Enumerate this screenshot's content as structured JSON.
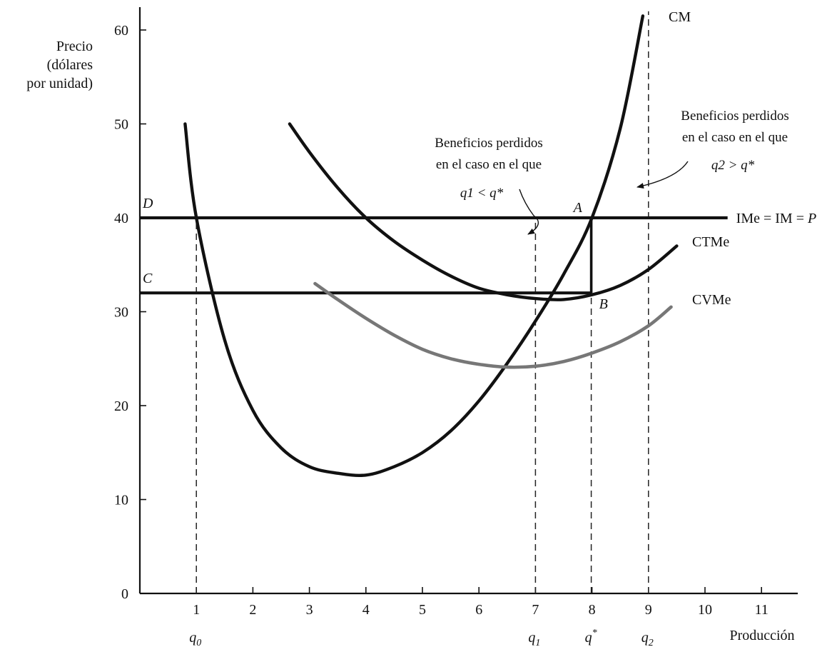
{
  "chart_data": {
    "type": "line",
    "ylabel": [
      "Precio",
      "(dólares",
      "por unidad)"
    ],
    "xlabel": "Producción",
    "xlim": [
      0,
      11.6
    ],
    "ylim": [
      0,
      63
    ],
    "xticks": [
      1,
      2,
      3,
      4,
      5,
      6,
      7,
      8,
      9,
      10,
      11
    ],
    "yticks": [
      0,
      10,
      20,
      30,
      40,
      50,
      60
    ],
    "quantity_labels": [
      {
        "x": 1,
        "label": "q0"
      },
      {
        "x": 7,
        "label": "q1"
      },
      {
        "x": 8,
        "label": "q*"
      },
      {
        "x": 9,
        "label": "q2"
      }
    ],
    "horizontal_lines": [
      {
        "name": "IMe = IM = P",
        "left_label": "D",
        "y": 40,
        "x_end": 10.4
      },
      {
        "left_label": "C",
        "y": 32,
        "x_end": 8
      }
    ],
    "series": [
      {
        "name": "CM",
        "color": "#111111",
        "x": [
          0.8,
          1.0,
          1.5,
          2.0,
          2.5,
          3.0,
          3.5,
          4.0,
          4.5,
          5.0,
          5.5,
          6.0,
          6.5,
          7.0,
          7.5,
          8.0,
          8.5,
          8.9
        ],
        "y": [
          50,
          40,
          27,
          19.5,
          15.5,
          13.5,
          12.8,
          12.6,
          13.5,
          15,
          17.3,
          20.5,
          24.5,
          29,
          34,
          40,
          49.5,
          61.5
        ]
      },
      {
        "name": "CTMe",
        "color": "#111111",
        "x": [
          2.65,
          3.0,
          3.5,
          4.0,
          4.5,
          5.0,
          5.5,
          6.0,
          6.5,
          7.0,
          7.5,
          8.0,
          8.5,
          9.0,
          9.5
        ],
        "y": [
          50,
          47,
          43.2,
          40,
          37.5,
          35.5,
          33.8,
          32.5,
          31.8,
          31.4,
          31.3,
          31.8,
          32.8,
          34.5,
          37
        ]
      },
      {
        "name": "CVMe",
        "color": "#777777",
        "x": [
          3.1,
          3.5,
          4.0,
          4.5,
          5.0,
          5.5,
          6.0,
          6.5,
          7.0,
          7.5,
          8.0,
          8.5,
          9.0,
          9.4
        ],
        "y": [
          33,
          31.3,
          29.3,
          27.5,
          26,
          25,
          24.4,
          24.1,
          24.2,
          24.7,
          25.6,
          26.8,
          28.5,
          30.5
        ]
      }
    ],
    "points": [
      {
        "label": "A",
        "x": 8,
        "y": 40
      },
      {
        "label": "B",
        "x": 8,
        "y": 32
      }
    ],
    "annotations": [
      {
        "lines": [
          "Beneficios perdidos",
          "en el caso en el que",
          "q1 < q*"
        ]
      },
      {
        "lines": [
          "Beneficios perdidos",
          "en el caso en el que",
          "q2 > q*"
        ]
      }
    ],
    "grid": false
  }
}
